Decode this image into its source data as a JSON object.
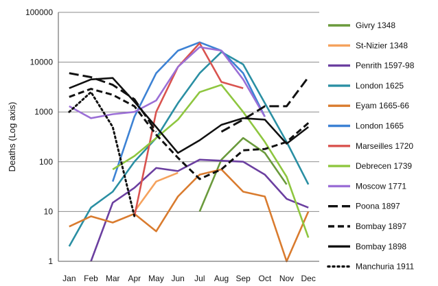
{
  "chart_data": {
    "type": "line",
    "title": "",
    "xlabel": "",
    "ylabel": "Deaths (Log axis)",
    "yscale": "log",
    "ylim": [
      1,
      100000
    ],
    "yticks": [
      "1",
      "10",
      "100",
      "1000",
      "10000",
      "100000"
    ],
    "categories": [
      "Jan",
      "Feb",
      "Mar",
      "Apr",
      "May",
      "Jun",
      "Jul",
      "Aug",
      "Sep",
      "Oct",
      "Nov",
      "Dec"
    ],
    "grid": "horizontal",
    "legend_position": "right",
    "series": [
      {
        "name": "Givry 1348",
        "color": "#6a9a3c",
        "dash": "solid",
        "values": [
          null,
          null,
          null,
          null,
          null,
          null,
          10,
          110,
          300,
          150,
          35,
          null
        ]
      },
      {
        "name": "St-Nizier 1348",
        "color": "#f5a25d",
        "dash": "solid",
        "values": [
          null,
          null,
          null,
          10,
          40,
          60,
          null,
          null,
          null,
          null,
          null,
          null
        ]
      },
      {
        "name": "Penrith 1597-98",
        "color": "#6b3fa0",
        "dash": "solid",
        "values": [
          null,
          1,
          15,
          30,
          75,
          65,
          110,
          105,
          100,
          55,
          18,
          12
        ]
      },
      {
        "name": "London 1625",
        "color": "#2a8fa3",
        "dash": "solid",
        "values": [
          2,
          12,
          25,
          100,
          300,
          1500,
          6000,
          16000,
          9000,
          1500,
          250,
          35
        ]
      },
      {
        "name": "Eyam 1665-66",
        "color": "#d97b2e",
        "dash": "solid",
        "values": [
          5,
          8,
          6,
          9,
          4,
          20,
          55,
          70,
          25,
          20,
          1,
          10
        ]
      },
      {
        "name": "London 1665",
        "color": "#3d82d4",
        "dash": "solid",
        "values": [
          null,
          null,
          40,
          800,
          6000,
          17000,
          25000,
          17000,
          6000,
          800,
          null,
          null
        ]
      },
      {
        "name": "Marseilles 1720",
        "color": "#d9534f",
        "dash": "solid",
        "values": [
          null,
          null,
          null,
          8,
          1000,
          8000,
          24000,
          4000,
          3000,
          null,
          null,
          null
        ]
      },
      {
        "name": "Debrecen 1739",
        "color": "#8ec63f",
        "dash": "solid",
        "values": [
          null,
          null,
          70,
          130,
          300,
          700,
          2500,
          3500,
          1000,
          250,
          50,
          3
        ]
      },
      {
        "name": "Moscow 1771",
        "color": "#9b6fd6",
        "dash": "solid",
        "values": [
          1300,
          750,
          900,
          1000,
          1700,
          8000,
          20000,
          17000,
          4500,
          800,
          null,
          null
        ]
      },
      {
        "name": "Poona 1897",
        "color": "#111111",
        "dash": "longdash",
        "values": [
          6000,
          5000,
          3500,
          1800,
          400,
          null,
          null,
          400,
          700,
          1300,
          1300,
          5000
        ]
      },
      {
        "name": "Bombay 1897",
        "color": "#111111",
        "dash": "dash",
        "values": [
          2000,
          2900,
          2200,
          1300,
          350,
          120,
          45,
          70,
          170,
          180,
          250,
          600
        ]
      },
      {
        "name": "Bombay 1898",
        "color": "#111111",
        "dash": "solid",
        "values": [
          3000,
          4500,
          4800,
          1600,
          500,
          150,
          270,
          550,
          750,
          700,
          230,
          500
        ]
      },
      {
        "name": "Manchuria 1911",
        "color": "#111111",
        "dash": "dot",
        "values": [
          1000,
          2500,
          500,
          8,
          null,
          null,
          null,
          null,
          null,
          null,
          null,
          null
        ]
      }
    ]
  }
}
